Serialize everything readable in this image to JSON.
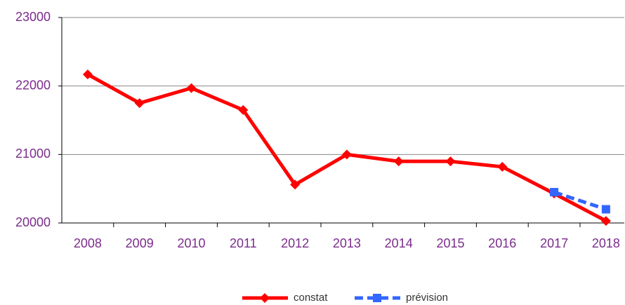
{
  "chart_data": {
    "type": "line",
    "categories": [
      "2008",
      "2009",
      "2010",
      "2011",
      "2012",
      "2013",
      "2014",
      "2015",
      "2016",
      "2017",
      "2018"
    ],
    "series": [
      {
        "name": "constat",
        "color": "#ff0000",
        "marker": "diamond",
        "dashed": false,
        "values": [
          22170,
          21750,
          21970,
          21650,
          20560,
          21000,
          20900,
          20900,
          20820,
          20430,
          20030
        ]
      },
      {
        "name": "prévision",
        "color": "#3366ff",
        "marker": "square",
        "dashed": true,
        "values": [
          null,
          null,
          null,
          null,
          null,
          null,
          null,
          null,
          null,
          20450,
          20200
        ]
      }
    ],
    "ylim": [
      20000,
      23000
    ],
    "yticks": [
      20000,
      21000,
      22000,
      23000
    ],
    "grid": true,
    "legend": "bottom"
  }
}
